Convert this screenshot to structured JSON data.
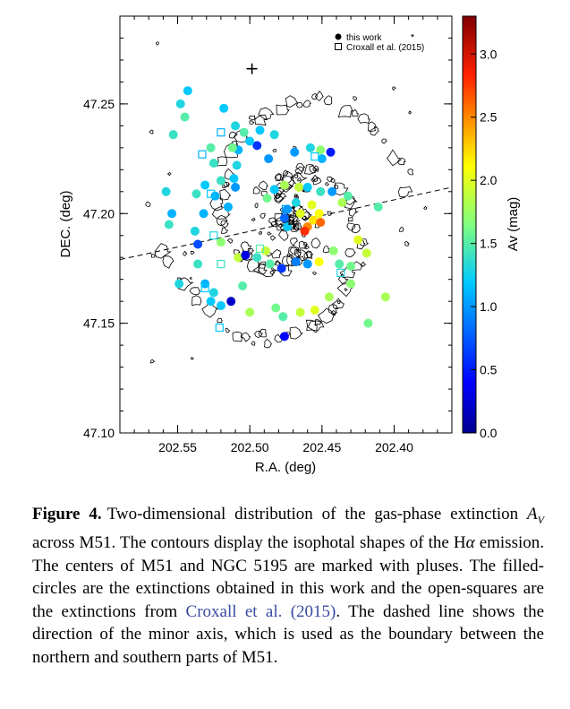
{
  "chart_data": {
    "type": "scatter",
    "xlabel": "R.A. (deg)",
    "ylabel": "DEC. (deg)",
    "colorbar_label": "Av (mag)",
    "xlim": [
      202.59,
      202.36
    ],
    "ylim": [
      47.1,
      47.29
    ],
    "x_ticks": [
      "202.55",
      "202.50",
      "202.45",
      "202.40"
    ],
    "y_ticks": [
      "47.10",
      "47.15",
      "47.20",
      "47.25"
    ],
    "colorbar_range": [
      0.0,
      3.3
    ],
    "colorbar_ticks": [
      "0.0",
      "0.5",
      "1.0",
      "1.5",
      "2.0",
      "2.5",
      "3.0"
    ],
    "legend": {
      "placement": "top-right",
      "entries": [
        {
          "marker": "filled-circle",
          "label": "this work"
        },
        {
          "marker": "open-square",
          "label": "Croxall et al. (2015)"
        }
      ]
    },
    "minor_axis_line": {
      "style": "dashed",
      "x": [
        202.59,
        202.36
      ],
      "y": [
        47.179,
        47.212
      ]
    },
    "centers": [
      {
        "x": 202.4696,
        "y": 47.1952
      },
      {
        "x": 202.4985,
        "y": 47.266
      }
    ],
    "series": [
      {
        "marker": "filled-circle",
        "points": [
          {
            "x": 202.465,
            "y": 47.2,
            "av": 2.0
          },
          {
            "x": 202.456,
            "y": 47.197,
            "av": 2.2
          },
          {
            "x": 202.451,
            "y": 47.196,
            "av": 2.6
          },
          {
            "x": 202.46,
            "y": 47.194,
            "av": 2.5
          },
          {
            "x": 202.462,
            "y": 47.192,
            "av": 2.8
          },
          {
            "x": 202.457,
            "y": 47.204,
            "av": 2.0
          },
          {
            "x": 202.468,
            "y": 47.205,
            "av": 1.3
          },
          {
            "x": 202.474,
            "y": 47.202,
            "av": 1.0
          },
          {
            "x": 202.476,
            "y": 47.198,
            "av": 0.8
          },
          {
            "x": 202.474,
            "y": 47.194,
            "av": 1.2
          },
          {
            "x": 202.452,
            "y": 47.2,
            "av": 2.1
          },
          {
            "x": 202.487,
            "y": 47.225,
            "av": 1.0
          },
          {
            "x": 202.495,
            "y": 47.231,
            "av": 0.6
          },
          {
            "x": 202.5,
            "y": 47.233,
            "av": 1.2
          },
          {
            "x": 202.508,
            "y": 47.229,
            "av": 1.1
          },
          {
            "x": 202.509,
            "y": 47.222,
            "av": 1.3
          },
          {
            "x": 202.511,
            "y": 47.216,
            "av": 1.2
          },
          {
            "x": 202.51,
            "y": 47.212,
            "av": 1.0
          },
          {
            "x": 202.52,
            "y": 47.215,
            "av": 1.4
          },
          {
            "x": 202.524,
            "y": 47.208,
            "av": 1.1
          },
          {
            "x": 202.525,
            "y": 47.223,
            "av": 1.4
          },
          {
            "x": 202.504,
            "y": 47.237,
            "av": 1.5
          },
          {
            "x": 202.493,
            "y": 47.238,
            "av": 1.2
          },
          {
            "x": 202.483,
            "y": 47.236,
            "av": 1.3
          },
          {
            "x": 202.469,
            "y": 47.228,
            "av": 1.0
          },
          {
            "x": 202.458,
            "y": 47.23,
            "av": 1.3
          },
          {
            "x": 202.451,
            "y": 47.229,
            "av": 1.7
          },
          {
            "x": 202.444,
            "y": 47.228,
            "av": 0.5
          },
          {
            "x": 202.45,
            "y": 47.225,
            "av": 1.1
          },
          {
            "x": 202.51,
            "y": 47.24,
            "av": 1.3
          },
          {
            "x": 202.512,
            "y": 47.23,
            "av": 1.6
          },
          {
            "x": 202.531,
            "y": 47.213,
            "av": 1.2
          },
          {
            "x": 202.537,
            "y": 47.209,
            "av": 1.4
          },
          {
            "x": 202.515,
            "y": 47.203,
            "av": 1.1
          },
          {
            "x": 202.527,
            "y": 47.23,
            "av": 1.5
          },
          {
            "x": 202.476,
            "y": 47.213,
            "av": 1.8
          },
          {
            "x": 202.466,
            "y": 47.212,
            "av": 1.9
          },
          {
            "x": 202.46,
            "y": 47.212,
            "av": 1.2
          },
          {
            "x": 202.451,
            "y": 47.21,
            "av": 1.4
          },
          {
            "x": 202.443,
            "y": 47.21,
            "av": 1.0
          },
          {
            "x": 202.432,
            "y": 47.208,
            "av": 1.5
          },
          {
            "x": 202.483,
            "y": 47.211,
            "av": 1.2
          },
          {
            "x": 202.488,
            "y": 47.207,
            "av": 1.6
          },
          {
            "x": 202.436,
            "y": 47.205,
            "av": 1.8
          },
          {
            "x": 202.532,
            "y": 47.2,
            "av": 1.1
          },
          {
            "x": 202.538,
            "y": 47.192,
            "av": 1.3
          },
          {
            "x": 202.536,
            "y": 47.186,
            "av": 0.7
          },
          {
            "x": 202.52,
            "y": 47.187,
            "av": 1.7
          },
          {
            "x": 202.508,
            "y": 47.18,
            "av": 1.9
          },
          {
            "x": 202.503,
            "y": 47.181,
            "av": 0.3
          },
          {
            "x": 202.495,
            "y": 47.18,
            "av": 1.4
          },
          {
            "x": 202.486,
            "y": 47.177,
            "av": 1.5
          },
          {
            "x": 202.478,
            "y": 47.175,
            "av": 0.6
          },
          {
            "x": 202.468,
            "y": 47.178,
            "av": 0.9
          },
          {
            "x": 202.46,
            "y": 47.177,
            "av": 1.0
          },
          {
            "x": 202.452,
            "y": 47.178,
            "av": 2.1
          },
          {
            "x": 202.442,
            "y": 47.183,
            "av": 1.7
          },
          {
            "x": 202.438,
            "y": 47.177,
            "av": 1.5
          },
          {
            "x": 202.425,
            "y": 47.188,
            "av": 2.0
          },
          {
            "x": 202.419,
            "y": 47.182,
            "av": 1.9
          },
          {
            "x": 202.411,
            "y": 47.203,
            "av": 1.5
          },
          {
            "x": 202.43,
            "y": 47.176,
            "av": 1.6
          },
          {
            "x": 202.513,
            "y": 47.16,
            "av": 0.2
          },
          {
            "x": 202.52,
            "y": 47.158,
            "av": 1.2
          },
          {
            "x": 202.525,
            "y": 47.164,
            "av": 1.3
          },
          {
            "x": 202.531,
            "y": 47.168,
            "av": 1.1
          },
          {
            "x": 202.536,
            "y": 47.177,
            "av": 1.4
          },
          {
            "x": 202.527,
            "y": 47.16,
            "av": 1.2
          },
          {
            "x": 202.5,
            "y": 47.155,
            "av": 1.8
          },
          {
            "x": 202.482,
            "y": 47.157,
            "av": 1.6
          },
          {
            "x": 202.477,
            "y": 47.153,
            "av": 1.5
          },
          {
            "x": 202.465,
            "y": 47.155,
            "av": 1.9
          },
          {
            "x": 202.455,
            "y": 47.156,
            "av": 2.0
          },
          {
            "x": 202.445,
            "y": 47.162,
            "av": 1.8
          },
          {
            "x": 202.43,
            "y": 47.168,
            "av": 1.7
          },
          {
            "x": 202.418,
            "y": 47.15,
            "av": 1.6
          },
          {
            "x": 202.406,
            "y": 47.162,
            "av": 1.8
          },
          {
            "x": 202.476,
            "y": 47.144,
            "av": 0.4
          },
          {
            "x": 202.505,
            "y": 47.167,
            "av": 1.5
          },
          {
            "x": 202.489,
            "y": 47.183,
            "av": 1.9
          },
          {
            "x": 202.548,
            "y": 47.25,
            "av": 1.3
          },
          {
            "x": 202.543,
            "y": 47.256,
            "av": 1.2
          },
          {
            "x": 202.553,
            "y": 47.236,
            "av": 1.4
          },
          {
            "x": 202.518,
            "y": 47.248,
            "av": 1.2
          },
          {
            "x": 202.545,
            "y": 47.244,
            "av": 1.5
          },
          {
            "x": 202.558,
            "y": 47.21,
            "av": 1.3
          },
          {
            "x": 202.554,
            "y": 47.2,
            "av": 1.1
          },
          {
            "x": 202.556,
            "y": 47.195,
            "av": 1.4
          },
          {
            "x": 202.549,
            "y": 47.168,
            "av": 1.3
          }
        ]
      },
      {
        "marker": "open-square",
        "points": [
          {
            "x": 202.533,
            "y": 47.227,
            "av": 1.1
          },
          {
            "x": 202.527,
            "y": 47.209,
            "av": 1.2
          },
          {
            "x": 202.525,
            "y": 47.19,
            "av": 1.3
          },
          {
            "x": 202.531,
            "y": 47.166,
            "av": 1.2
          },
          {
            "x": 202.52,
            "y": 47.177,
            "av": 1.4
          },
          {
            "x": 202.475,
            "y": 47.202,
            "av": 1.0
          },
          {
            "x": 202.455,
            "y": 47.226,
            "av": 1.2
          },
          {
            "x": 202.52,
            "y": 47.237,
            "av": 1.1
          },
          {
            "x": 202.437,
            "y": 47.173,
            "av": 1.3
          },
          {
            "x": 202.521,
            "y": 47.148,
            "av": 1.2
          },
          {
            "x": 202.493,
            "y": 47.184,
            "av": 1.5
          }
        ]
      }
    ]
  },
  "caption": {
    "label": "Figure 4.",
    "p1": "Two-dimensional distribution of the gas-phase extinction ",
    "av_symbol": "A",
    "av_sub": "V",
    "p2": " across M51. The contours display the isophotal shapes of the H",
    "alpha": "α",
    "p3": " emission. The centers of M51 and NGC 5195 are marked with pluses. The filled-circles are the extinctions obtained in this work and the open-squares are the extinctions from ",
    "cite": "Croxall et al. (2015)",
    "p4": ". The dashed line shows the direction of the minor axis, which is used as the boundary between the northern and southern parts of M51."
  }
}
